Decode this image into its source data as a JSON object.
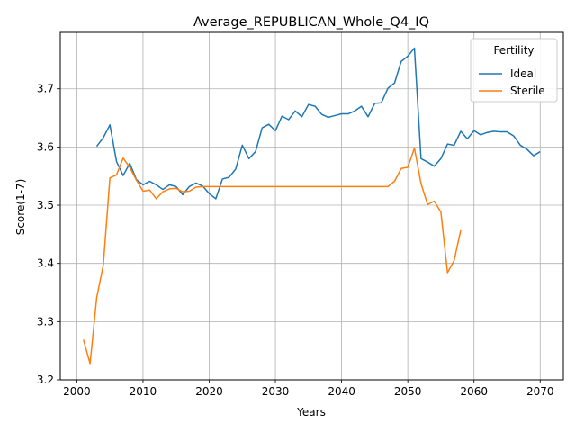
{
  "chart_data": {
    "type": "line",
    "title": "Average_REPUBLICAN_Whole_Q4_IQ",
    "xlabel": "Years",
    "ylabel": "Score(1-7)",
    "xlim": [
      1997.5,
      2073.5
    ],
    "ylim": [
      3.2,
      3.797
    ],
    "xticks": [
      2000,
      2010,
      2020,
      2030,
      2040,
      2050,
      2060,
      2070
    ],
    "yticks": [
      3.2,
      3.3,
      3.4,
      3.5,
      3.6,
      3.7
    ],
    "grid": true,
    "legend": {
      "title": "Fertility",
      "position": "top-right"
    },
    "series": [
      {
        "name": "Ideal",
        "color": "#1f77b4",
        "x": [
          2003,
          2004,
          2005,
          2006,
          2007,
          2008,
          2009,
          2010,
          2011,
          2012,
          2013,
          2014,
          2015,
          2016,
          2017,
          2018,
          2019,
          2020,
          2021,
          2022,
          2023,
          2024,
          2025,
          2026,
          2027,
          2028,
          2029,
          2030,
          2031,
          2032,
          2033,
          2034,
          2035,
          2036,
          2037,
          2038,
          2039,
          2040,
          2041,
          2042,
          2043,
          2044,
          2045,
          2046,
          2047,
          2048,
          2049,
          2050,
          2051,
          2052,
          2053,
          2054,
          2055,
          2056,
          2057,
          2058,
          2059,
          2060,
          2061,
          2062,
          2063,
          2064,
          2065,
          2066,
          2067,
          2068,
          2069,
          2070
        ],
        "y": [
          3.601,
          3.616,
          3.638,
          3.575,
          3.551,
          3.572,
          3.544,
          3.535,
          3.541,
          3.535,
          3.527,
          3.535,
          3.532,
          3.518,
          3.532,
          3.538,
          3.533,
          3.52,
          3.511,
          3.545,
          3.548,
          3.562,
          3.603,
          3.58,
          3.592,
          3.633,
          3.639,
          3.628,
          3.653,
          3.647,
          3.662,
          3.652,
          3.673,
          3.67,
          3.656,
          3.651,
          3.654,
          3.657,
          3.657,
          3.662,
          3.67,
          3.652,
          3.675,
          3.676,
          3.701,
          3.71,
          3.747,
          3.756,
          3.77,
          3.58,
          3.574,
          3.567,
          3.58,
          3.605,
          3.603,
          3.627,
          3.614,
          3.628,
          3.621,
          3.625,
          3.627,
          3.626,
          3.626,
          3.619,
          3.603,
          3.596,
          3.585,
          3.592
        ]
      },
      {
        "name": "Sterile",
        "color": "#ff7f0e",
        "x": [
          2001,
          2002,
          2003,
          2004,
          2005,
          2006,
          2007,
          2008,
          2009,
          2010,
          2011,
          2012,
          2013,
          2014,
          2015,
          2016,
          2017,
          2018,
          2019,
          2020,
          2021,
          2022,
          2023,
          2024,
          2025,
          2026,
          2027,
          2028,
          2029,
          2030,
          2031,
          2032,
          2033,
          2034,
          2035,
          2036,
          2037,
          2038,
          2039,
          2040,
          2041,
          2042,
          2043,
          2044,
          2045,
          2046,
          2047,
          2048,
          2049,
          2050,
          2051,
          2052,
          2053,
          2054,
          2055,
          2056,
          2057,
          2058
        ],
        "y": [
          3.269,
          3.228,
          3.341,
          3.397,
          3.547,
          3.552,
          3.581,
          3.565,
          3.543,
          3.524,
          3.526,
          3.511,
          3.523,
          3.528,
          3.529,
          3.523,
          3.524,
          3.531,
          3.532,
          3.532,
          3.532,
          3.532,
          3.532,
          3.532,
          3.532,
          3.532,
          3.532,
          3.532,
          3.532,
          3.532,
          3.532,
          3.532,
          3.532,
          3.532,
          3.532,
          3.532,
          3.532,
          3.532,
          3.532,
          3.532,
          3.532,
          3.532,
          3.532,
          3.532,
          3.532,
          3.532,
          3.532,
          3.541,
          3.563,
          3.565,
          3.598,
          3.537,
          3.501,
          3.507,
          3.488,
          3.384,
          3.405,
          3.457
        ]
      }
    ]
  }
}
